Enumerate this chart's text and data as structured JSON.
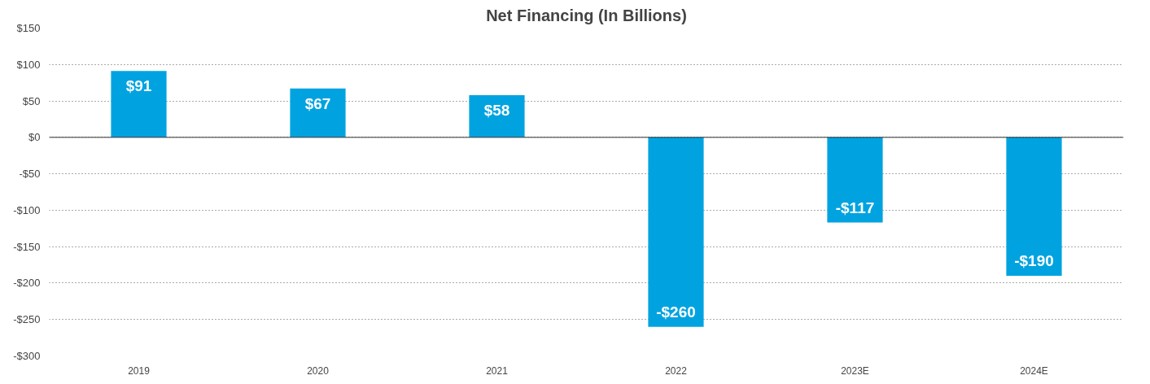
{
  "chart_data": {
    "type": "bar",
    "title": "Net Financing (In Billions)",
    "categories": [
      "2019",
      "2020",
      "2021",
      "2022",
      "2023E",
      "2024E"
    ],
    "values": [
      91,
      67,
      58,
      -260,
      -117,
      -190
    ],
    "value_labels": [
      "$91",
      "$67",
      "$58",
      "-$260",
      "-$117",
      "-$190"
    ],
    "color": "#00a3e0",
    "ylim": [
      -300,
      150
    ],
    "yticks": [
      {
        "value": -300,
        "label": "-$300"
      },
      {
        "value": -250,
        "label": "-$250"
      },
      {
        "value": -200,
        "label": "-$200"
      },
      {
        "value": -150,
        "label": "-$150"
      },
      {
        "value": -100,
        "label": "-$100"
      },
      {
        "value": -50,
        "label": "-$50"
      },
      {
        "value": 0,
        "label": "$0"
      },
      {
        "value": 50,
        "label": "$50"
      },
      {
        "value": 100,
        "label": "$100"
      },
      {
        "value": 150,
        "label": "$150"
      }
    ],
    "grid": "y"
  }
}
